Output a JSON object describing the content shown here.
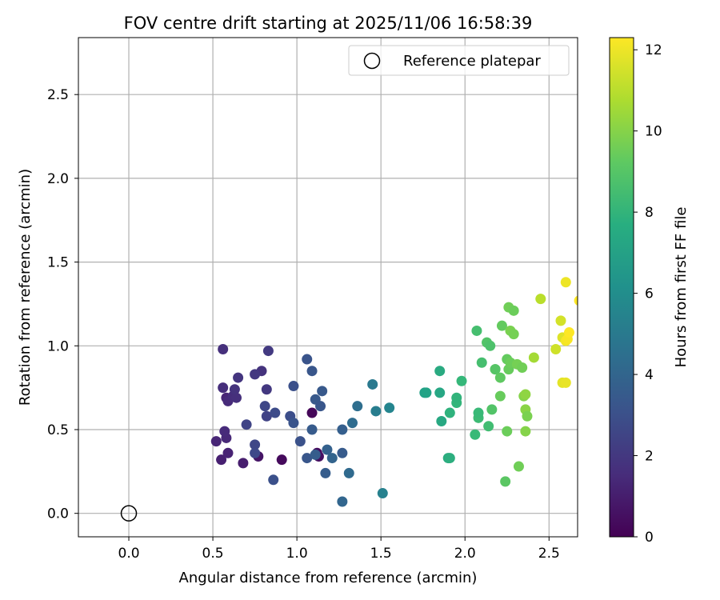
{
  "chart_data": {
    "type": "scatter",
    "title": "FOV centre drift starting at 2025/11/06 16:58:39",
    "xlabel": "Angular distance from reference (arcmin)",
    "ylabel": "Rotation from reference (arcmin)",
    "xlim": [
      -0.3,
      2.67
    ],
    "ylim": [
      -0.14,
      2.84
    ],
    "xticks": [
      0.0,
      0.5,
      1.0,
      1.5,
      2.0,
      2.5
    ],
    "xtick_labels": [
      "0.0",
      "0.5",
      "1.0",
      "1.5",
      "2.0",
      "2.5"
    ],
    "yticks": [
      0.0,
      0.5,
      1.0,
      1.5,
      2.0,
      2.5
    ],
    "ytick_labels": [
      "0.0",
      "0.5",
      "1.0",
      "1.5",
      "2.0",
      "2.5"
    ],
    "grid": true,
    "legend": {
      "position": "top-right",
      "entries": [
        "Reference platepar"
      ]
    },
    "reference_point": {
      "x": 0.0,
      "y": 0.0,
      "label": "Reference platepar"
    },
    "colorbar": {
      "label": "Hours from first FF file",
      "range": [
        0,
        12.3
      ],
      "ticks": [
        0,
        2,
        4,
        6,
        8,
        10,
        12
      ],
      "tick_labels": [
        "0",
        "2",
        "4",
        "6",
        "8",
        "10",
        "12"
      ],
      "colormap": "viridis"
    },
    "points": [
      {
        "x": 1.09,
        "y": 0.6,
        "h": 0.2
      },
      {
        "x": 0.91,
        "y": 0.32,
        "h": 0.3
      },
      {
        "x": 1.12,
        "y": 0.36,
        "h": 0.4
      },
      {
        "x": 1.13,
        "y": 0.34,
        "h": 0.5
      },
      {
        "x": 0.77,
        "y": 0.34,
        "h": 0.7
      },
      {
        "x": 0.68,
        "y": 0.3,
        "h": 1.0
      },
      {
        "x": 0.55,
        "y": 0.32,
        "h": 1.1
      },
      {
        "x": 0.59,
        "y": 0.36,
        "h": 1.2
      },
      {
        "x": 0.52,
        "y": 0.43,
        "h": 1.3
      },
      {
        "x": 0.58,
        "y": 0.45,
        "h": 1.4
      },
      {
        "x": 0.57,
        "y": 0.49,
        "h": 1.5
      },
      {
        "x": 0.58,
        "y": 0.69,
        "h": 1.3
      },
      {
        "x": 0.59,
        "y": 0.67,
        "h": 1.5
      },
      {
        "x": 0.62,
        "y": 0.7,
        "h": 1.6
      },
      {
        "x": 0.64,
        "y": 0.69,
        "h": 1.7
      },
      {
        "x": 0.56,
        "y": 0.75,
        "h": 1.6
      },
      {
        "x": 0.63,
        "y": 0.74,
        "h": 1.8
      },
      {
        "x": 0.65,
        "y": 0.81,
        "h": 1.9
      },
      {
        "x": 0.56,
        "y": 0.98,
        "h": 1.7
      },
      {
        "x": 0.79,
        "y": 0.85,
        "h": 1.8
      },
      {
        "x": 0.75,
        "y": 0.83,
        "h": 2.0
      },
      {
        "x": 0.82,
        "y": 0.74,
        "h": 2.0
      },
      {
        "x": 0.83,
        "y": 0.97,
        "h": 2.1
      },
      {
        "x": 0.81,
        "y": 0.64,
        "h": 2.6
      },
      {
        "x": 0.82,
        "y": 0.58,
        "h": 2.4
      },
      {
        "x": 0.7,
        "y": 0.53,
        "h": 2.5
      },
      {
        "x": 0.75,
        "y": 0.41,
        "h": 2.6
      },
      {
        "x": 0.75,
        "y": 0.36,
        "h": 2.7
      },
      {
        "x": 0.87,
        "y": 0.6,
        "h": 2.8
      },
      {
        "x": 0.96,
        "y": 0.58,
        "h": 2.9
      },
      {
        "x": 0.98,
        "y": 0.54,
        "h": 3.2
      },
      {
        "x": 0.86,
        "y": 0.2,
        "h": 3.0
      },
      {
        "x": 0.98,
        "y": 0.76,
        "h": 3.0
      },
      {
        "x": 1.02,
        "y": 0.43,
        "h": 3.1
      },
      {
        "x": 1.06,
        "y": 0.33,
        "h": 3.3
      },
      {
        "x": 1.06,
        "y": 0.92,
        "h": 3.2
      },
      {
        "x": 1.09,
        "y": 0.85,
        "h": 3.3
      },
      {
        "x": 1.09,
        "y": 0.5,
        "h": 3.5
      },
      {
        "x": 1.11,
        "y": 0.68,
        "h": 3.4
      },
      {
        "x": 1.14,
        "y": 0.64,
        "h": 3.3
      },
      {
        "x": 1.15,
        "y": 0.73,
        "h": 3.4
      },
      {
        "x": 1.11,
        "y": 0.35,
        "h": 3.6
      },
      {
        "x": 1.18,
        "y": 0.38,
        "h": 3.8
      },
      {
        "x": 1.17,
        "y": 0.24,
        "h": 3.6
      },
      {
        "x": 1.21,
        "y": 0.33,
        "h": 3.9
      },
      {
        "x": 1.27,
        "y": 0.36,
        "h": 3.5
      },
      {
        "x": 1.27,
        "y": 0.5,
        "h": 3.7
      },
      {
        "x": 1.27,
        "y": 0.07,
        "h": 4.0
      },
      {
        "x": 1.31,
        "y": 0.24,
        "h": 4.2
      },
      {
        "x": 1.33,
        "y": 0.54,
        "h": 4.3
      },
      {
        "x": 1.36,
        "y": 0.64,
        "h": 4.4
      },
      {
        "x": 1.45,
        "y": 0.77,
        "h": 5.0
      },
      {
        "x": 1.47,
        "y": 0.61,
        "h": 5.2
      },
      {
        "x": 1.51,
        "y": 0.12,
        "h": 5.4
      },
      {
        "x": 1.55,
        "y": 0.63,
        "h": 5.6
      },
      {
        "x": 1.76,
        "y": 0.72,
        "h": 7.0
      },
      {
        "x": 1.77,
        "y": 0.72,
        "h": 7.1
      },
      {
        "x": 1.85,
        "y": 0.72,
        "h": 7.3
      },
      {
        "x": 1.85,
        "y": 0.85,
        "h": 7.5
      },
      {
        "x": 1.86,
        "y": 0.55,
        "h": 7.4
      },
      {
        "x": 1.9,
        "y": 0.33,
        "h": 7.6
      },
      {
        "x": 1.91,
        "y": 0.33,
        "h": 7.7
      },
      {
        "x": 1.91,
        "y": 0.6,
        "h": 7.9
      },
      {
        "x": 1.95,
        "y": 0.66,
        "h": 8.1
      },
      {
        "x": 1.95,
        "y": 0.69,
        "h": 8.0
      },
      {
        "x": 1.98,
        "y": 0.79,
        "h": 8.2
      },
      {
        "x": 2.06,
        "y": 0.47,
        "h": 8.3
      },
      {
        "x": 2.07,
        "y": 1.09,
        "h": 8.6
      },
      {
        "x": 2.08,
        "y": 0.57,
        "h": 8.4
      },
      {
        "x": 2.08,
        "y": 0.6,
        "h": 8.3
      },
      {
        "x": 2.1,
        "y": 0.9,
        "h": 8.6
      },
      {
        "x": 2.13,
        "y": 1.02,
        "h": 8.9
      },
      {
        "x": 2.14,
        "y": 0.52,
        "h": 8.5
      },
      {
        "x": 2.15,
        "y": 1.0,
        "h": 8.8
      },
      {
        "x": 2.16,
        "y": 0.62,
        "h": 8.9
      },
      {
        "x": 2.18,
        "y": 0.86,
        "h": 9.1
      },
      {
        "x": 2.18,
        "y": 0.86,
        "h": 9.0
      },
      {
        "x": 2.21,
        "y": 0.81,
        "h": 9.2
      },
      {
        "x": 2.21,
        "y": 0.7,
        "h": 9.4
      },
      {
        "x": 2.22,
        "y": 1.12,
        "h": 9.3
      },
      {
        "x": 2.24,
        "y": 0.19,
        "h": 9.1
      },
      {
        "x": 2.25,
        "y": 0.92,
        "h": 9.3
      },
      {
        "x": 2.25,
        "y": 0.49,
        "h": 9.5
      },
      {
        "x": 2.26,
        "y": 0.86,
        "h": 9.4
      },
      {
        "x": 2.26,
        "y": 1.23,
        "h": 9.6
      },
      {
        "x": 2.27,
        "y": 1.09,
        "h": 9.8
      },
      {
        "x": 2.27,
        "y": 0.9,
        "h": 9.5
      },
      {
        "x": 2.29,
        "y": 1.07,
        "h": 9.7
      },
      {
        "x": 2.29,
        "y": 1.21,
        "h": 9.5
      },
      {
        "x": 2.31,
        "y": 0.89,
        "h": 9.7
      },
      {
        "x": 2.32,
        "y": 0.28,
        "h": 9.6
      },
      {
        "x": 2.34,
        "y": 0.87,
        "h": 9.6
      },
      {
        "x": 2.35,
        "y": 0.7,
        "h": 10.0
      },
      {
        "x": 2.36,
        "y": 0.71,
        "h": 10.2
      },
      {
        "x": 2.36,
        "y": 0.62,
        "h": 10.1
      },
      {
        "x": 2.36,
        "y": 0.49,
        "h": 10.0
      },
      {
        "x": 2.37,
        "y": 0.58,
        "h": 9.8
      },
      {
        "x": 2.41,
        "y": 0.93,
        "h": 10.6
      },
      {
        "x": 2.45,
        "y": 1.28,
        "h": 11.0
      },
      {
        "x": 2.54,
        "y": 0.98,
        "h": 11.4
      },
      {
        "x": 2.57,
        "y": 1.15,
        "h": 11.5
      },
      {
        "x": 2.58,
        "y": 1.05,
        "h": 11.7
      },
      {
        "x": 2.58,
        "y": 0.78,
        "h": 11.8
      },
      {
        "x": 2.6,
        "y": 0.78,
        "h": 11.9
      },
      {
        "x": 2.6,
        "y": 1.38,
        "h": 12.0
      },
      {
        "x": 2.6,
        "y": 1.03,
        "h": 12.1
      },
      {
        "x": 2.61,
        "y": 1.04,
        "h": 12.2
      },
      {
        "x": 2.62,
        "y": 1.08,
        "h": 12.3
      },
      {
        "x": 2.68,
        "y": 1.27,
        "h": 12.3
      }
    ]
  }
}
